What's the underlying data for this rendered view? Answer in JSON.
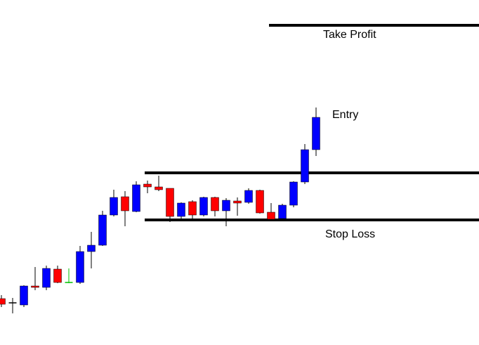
{
  "chart_data": {
    "type": "candlestick",
    "ylim": [
      0,
      491
    ],
    "series": [
      {
        "open": [
          66,
          60,
          57,
          84,
          82,
          108,
          89,
          89,
          133,
          142,
          185,
          211,
          190,
          229,
          225,
          223,
          183,
          204,
          185,
          210,
          191,
          205,
          203,
          220,
          189,
          180,
          199,
          232,
          278
        ],
        "high": [
          71,
          67,
          85,
          111,
          113,
          113,
          109,
          141,
          161,
          191,
          221,
          219,
          233,
          234,
          241,
          223,
          203,
          206,
          211,
          211,
          209,
          210,
          223,
          221,
          202,
          201,
          233,
          286,
          338
        ],
        "low": [
          54,
          45,
          54,
          78,
          78,
          88,
          88,
          87,
          109,
          141,
          183,
          169,
          189,
          216,
          219,
          175,
          176,
          179,
          183,
          183,
          169,
          184,
          201,
          187,
          178,
          178,
          196,
          229,
          269
        ],
        "close": [
          58,
          60,
          84,
          82,
          109,
          89,
          89,
          133,
          142,
          185,
          210,
          191,
          228,
          225,
          221,
          183,
          202,
          185,
          210,
          191,
          206,
          202,
          220,
          188,
          179,
          199,
          232,
          278,
          324
        ],
        "colors": [
          "#ff0000",
          "#000000",
          "#0000ff",
          "#ff0000",
          "#0000ff",
          "#ff0000",
          "#00c000",
          "#0000ff",
          "#0000ff",
          "#0000ff",
          "#0000ff",
          "#ff0000",
          "#0000ff",
          "#ff0000",
          "#ff0000",
          "#ff0000",
          "#0000ff",
          "#ff0000",
          "#0000ff",
          "#ff0000",
          "#0000ff",
          "#ff0000",
          "#0000ff",
          "#ff0000",
          "#ff0000",
          "#0000ff",
          "#0000ff",
          "#0000ff",
          "#0000ff"
        ]
      }
    ],
    "levels": [
      {
        "value": 455,
        "label": "Take Profit"
      },
      {
        "value": 245
      },
      {
        "value": 178,
        "label": "Stop Loss"
      }
    ],
    "annotations": [
      "Entry"
    ]
  }
}
